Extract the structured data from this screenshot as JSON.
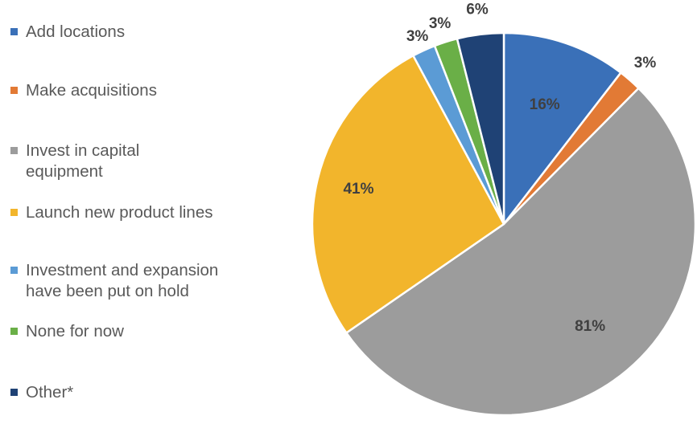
{
  "chart_data": {
    "type": "pie",
    "title": "",
    "legend_position": "left",
    "categories": [
      "Add locations",
      "Make acquisitions",
      "Invest in capital\nequipment",
      "Launch new product lines",
      "Investment and expansion\nhave been put on hold",
      "None for now",
      "Other*"
    ],
    "values": [
      16,
      3,
      81,
      41,
      3,
      3,
      6
    ],
    "data_labels": [
      "16%",
      "3%",
      "81%",
      "41%",
      "3%",
      "3%",
      "6%"
    ],
    "colors": [
      "#3a70b8",
      "#e27a35",
      "#9c9c9c",
      "#f2b52c",
      "#5b9bd5",
      "#6aaf47",
      "#1f4275"
    ]
  }
}
